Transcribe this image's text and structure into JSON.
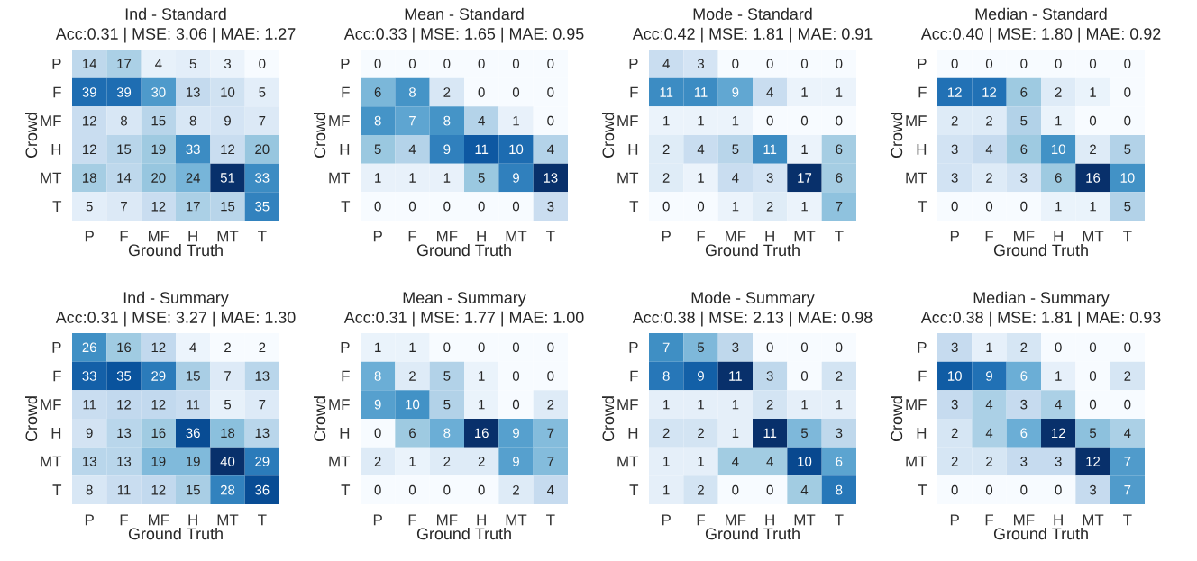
{
  "chart_data": [
    {
      "type": "heatmap",
      "title": "Ind - Standard",
      "subtitle": "Acc:0.31 | MSE: 3.06 | MAE: 1.27",
      "xlabel": "Ground Truth",
      "ylabel": "Crowd",
      "categories": [
        "P",
        "F",
        "MF",
        "H",
        "MT",
        "T"
      ],
      "y_categories": [
        "P",
        "F",
        "MF",
        "H",
        "MT",
        "T"
      ],
      "data_labels": true,
      "cells": [
        [
          14,
          17,
          4,
          5,
          3,
          0
        ],
        [
          39,
          39,
          30,
          13,
          10,
          5
        ],
        [
          12,
          8,
          15,
          8,
          9,
          7
        ],
        [
          12,
          15,
          19,
          33,
          12,
          20
        ],
        [
          18,
          14,
          20,
          24,
          51,
          33
        ],
        [
          5,
          7,
          12,
          17,
          15,
          35
        ]
      ]
    },
    {
      "type": "heatmap",
      "title": "Mean - Standard",
      "subtitle": "Acc:0.33 | MSE: 1.65 | MAE: 0.95",
      "xlabel": "Ground Truth",
      "ylabel": "Crowd",
      "categories": [
        "P",
        "F",
        "MF",
        "H",
        "MT",
        "T"
      ],
      "y_categories": [
        "P",
        "F",
        "MF",
        "H",
        "MT",
        "T"
      ],
      "data_labels": true,
      "cells": [
        [
          0,
          0,
          0,
          0,
          0,
          0
        ],
        [
          6,
          8,
          2,
          0,
          0,
          0
        ],
        [
          8,
          7,
          8,
          4,
          1,
          0
        ],
        [
          5,
          4,
          9,
          11,
          10,
          4
        ],
        [
          1,
          1,
          1,
          5,
          9,
          13
        ],
        [
          0,
          0,
          0,
          0,
          0,
          3
        ]
      ]
    },
    {
      "type": "heatmap",
      "title": "Mode - Standard",
      "subtitle": "Acc:0.42 | MSE: 1.81 | MAE: 0.91",
      "xlabel": "Ground Truth",
      "ylabel": "Crowd",
      "categories": [
        "P",
        "F",
        "MF",
        "H",
        "MT",
        "T"
      ],
      "y_categories": [
        "P",
        "F",
        "MF",
        "H",
        "MT",
        "T"
      ],
      "data_labels": true,
      "cells": [
        [
          4,
          3,
          0,
          0,
          0,
          0
        ],
        [
          11,
          11,
          9,
          4,
          1,
          1
        ],
        [
          1,
          1,
          1,
          0,
          0,
          0
        ],
        [
          2,
          4,
          5,
          11,
          1,
          6
        ],
        [
          2,
          1,
          4,
          3,
          17,
          6
        ],
        [
          0,
          0,
          1,
          2,
          1,
          7
        ]
      ]
    },
    {
      "type": "heatmap",
      "title": "Median - Standard",
      "subtitle": "Acc:0.40 | MSE: 1.80 | MAE: 0.92",
      "xlabel": "Ground Truth",
      "ylabel": "Crowd",
      "categories": [
        "P",
        "F",
        "MF",
        "H",
        "MT",
        "T"
      ],
      "y_categories": [
        "P",
        "F",
        "MF",
        "H",
        "MT",
        "T"
      ],
      "data_labels": true,
      "cells": [
        [
          0,
          0,
          0,
          0,
          0,
          0
        ],
        [
          12,
          12,
          6,
          2,
          1,
          0
        ],
        [
          2,
          2,
          5,
          1,
          0,
          0
        ],
        [
          3,
          4,
          6,
          10,
          2,
          5
        ],
        [
          3,
          2,
          3,
          6,
          16,
          10
        ],
        [
          0,
          0,
          0,
          1,
          1,
          5
        ]
      ]
    },
    {
      "type": "heatmap",
      "title": "Ind - Summary",
      "subtitle": "Acc:0.31 | MSE: 3.27 | MAE: 1.30",
      "xlabel": "Ground Truth",
      "ylabel": "Crowd",
      "categories": [
        "P",
        "F",
        "MF",
        "H",
        "MT",
        "T"
      ],
      "y_categories": [
        "P",
        "F",
        "MF",
        "H",
        "MT",
        "T"
      ],
      "data_labels": true,
      "cells": [
        [
          26,
          16,
          12,
          4,
          2,
          2
        ],
        [
          33,
          35,
          29,
          15,
          7,
          13
        ],
        [
          11,
          12,
          12,
          11,
          5,
          7
        ],
        [
          9,
          13,
          16,
          36,
          18,
          13
        ],
        [
          13,
          13,
          19,
          19,
          40,
          29
        ],
        [
          8,
          11,
          12,
          15,
          28,
          36
        ]
      ]
    },
    {
      "type": "heatmap",
      "title": "Mean - Summary",
      "subtitle": "Acc:0.31 | MSE: 1.77 | MAE: 1.00",
      "xlabel": "Ground Truth",
      "ylabel": "Crowd",
      "categories": [
        "P",
        "F",
        "MF",
        "H",
        "MT",
        "T"
      ],
      "y_categories": [
        "P",
        "F",
        "MF",
        "H",
        "MT",
        "T"
      ],
      "data_labels": true,
      "cells": [
        [
          1,
          1,
          0,
          0,
          0,
          0
        ],
        [
          8,
          2,
          5,
          1,
          0,
          0
        ],
        [
          9,
          10,
          5,
          1,
          0,
          2
        ],
        [
          0,
          6,
          8,
          16,
          9,
          7
        ],
        [
          2,
          1,
          2,
          2,
          9,
          7
        ],
        [
          0,
          0,
          0,
          0,
          2,
          4
        ]
      ]
    },
    {
      "type": "heatmap",
      "title": "Mode - Summary",
      "subtitle": "Acc:0.38 | MSE: 2.13 | MAE: 0.98",
      "xlabel": "Ground Truth",
      "ylabel": "Crowd",
      "categories": [
        "P",
        "F",
        "MF",
        "H",
        "MT",
        "T"
      ],
      "y_categories": [
        "P",
        "F",
        "MF",
        "H",
        "MT",
        "T"
      ],
      "data_labels": true,
      "cells": [
        [
          7,
          5,
          3,
          0,
          0,
          0
        ],
        [
          8,
          9,
          11,
          3,
          0,
          2
        ],
        [
          1,
          1,
          1,
          2,
          1,
          1
        ],
        [
          2,
          2,
          1,
          11,
          5,
          3
        ],
        [
          1,
          1,
          4,
          4,
          10,
          6
        ],
        [
          1,
          2,
          0,
          0,
          4,
          8
        ]
      ]
    },
    {
      "type": "heatmap",
      "title": "Median - Summary",
      "subtitle": "Acc:0.38 | MSE: 1.81 | MAE: 0.93",
      "xlabel": "Ground Truth",
      "ylabel": "Crowd",
      "categories": [
        "P",
        "F",
        "MF",
        "H",
        "MT",
        "T"
      ],
      "y_categories": [
        "P",
        "F",
        "MF",
        "H",
        "MT",
        "T"
      ],
      "data_labels": true,
      "cells": [
        [
          3,
          1,
          2,
          0,
          0,
          0
        ],
        [
          10,
          9,
          6,
          1,
          0,
          2
        ],
        [
          3,
          4,
          3,
          4,
          0,
          0
        ],
        [
          2,
          4,
          6,
          12,
          5,
          4
        ],
        [
          2,
          2,
          3,
          3,
          12,
          7
        ],
        [
          0,
          0,
          0,
          0,
          3,
          7
        ]
      ]
    }
  ]
}
